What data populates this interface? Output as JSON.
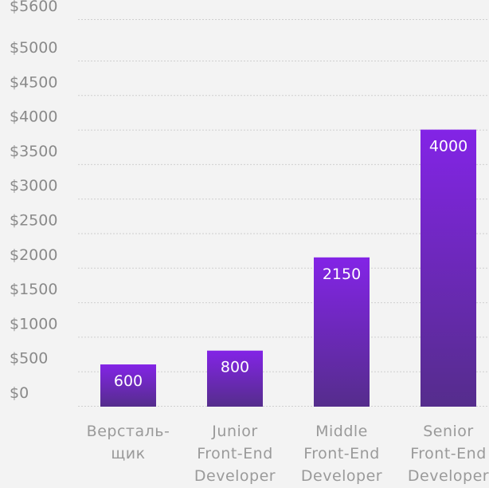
{
  "chart_data": {
    "type": "bar",
    "categories": [
      [
        "Версталь-",
        "щик"
      ],
      [
        "Junior",
        "Front-End",
        "Developer"
      ],
      [
        "Middle",
        "Front-End",
        "Developer"
      ],
      [
        "Senior",
        "Front-End",
        "Developer"
      ]
    ],
    "values": [
      600,
      800,
      2150,
      4000
    ],
    "value_labels": [
      "600",
      "800",
      "2150",
      "4000"
    ],
    "y_ticks": [
      0,
      500,
      1000,
      1500,
      2000,
      2500,
      3000,
      3500,
      4000,
      4500,
      5000,
      5600
    ],
    "y_tick_labels": [
      "$0",
      "$500",
      "$1000",
      "$1500",
      "$2000",
      "$2500",
      "$3000",
      "$3500",
      "$4000",
      "$4500",
      "$5000",
      "$5600"
    ],
    "ylim": [
      0,
      5600
    ],
    "grid": true,
    "colors": {
      "bar_top": "#8324e6",
      "bar_bottom": "#552d8c",
      "grid": "#cfcfcf",
      "tick_text": "#8a8a8a",
      "category_text": "#9a9a9a",
      "background": "#f3f3f3"
    },
    "title": "",
    "xlabel": "",
    "ylabel": ""
  }
}
